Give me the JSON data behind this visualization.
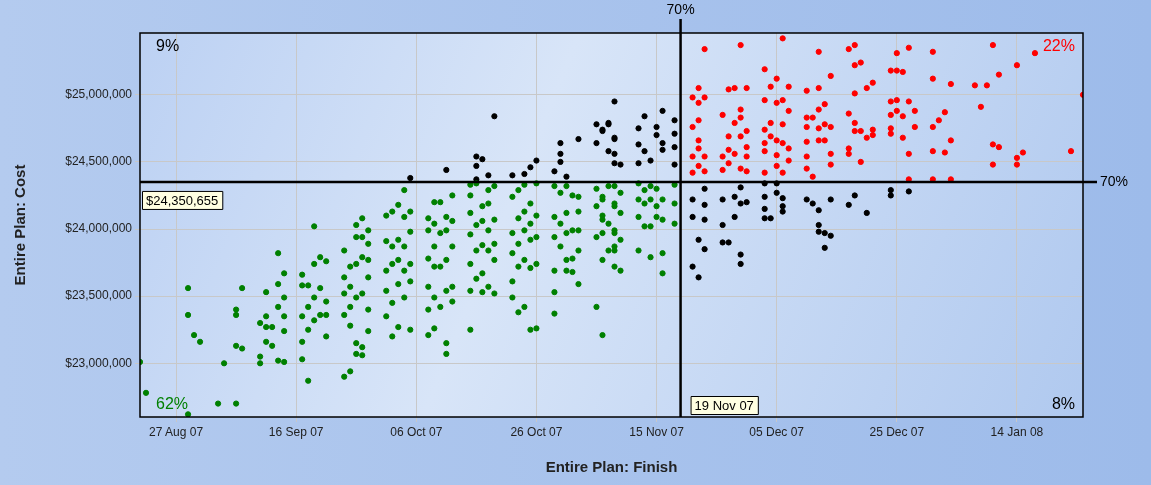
{
  "chart_data": {
    "type": "scatter",
    "xlabel": "Entire Plan: Finish",
    "ylabel": "Entire Plan: Cost",
    "xlim": [
      "2007-08-21",
      "2008-01-25"
    ],
    "xticks": [
      {
        "value": "2007-08-27",
        "label": "27 Aug 07"
      },
      {
        "value": "2007-09-16",
        "label": "16 Sep 07"
      },
      {
        "value": "2007-10-06",
        "label": "06 Oct 07"
      },
      {
        "value": "2007-10-26",
        "label": "26 Oct 07"
      },
      {
        "value": "2007-11-15",
        "label": "15 Nov 07"
      },
      {
        "value": "2007-12-05",
        "label": "05 Dec 07"
      },
      {
        "value": "2007-12-25",
        "label": "25 Dec 07"
      },
      {
        "value": "2008-01-14",
        "label": "14 Jan 08"
      }
    ],
    "ylim": [
      22600000,
      25460000
    ],
    "yticks": [
      {
        "value": 23000000,
        "label": "$23,000,000"
      },
      {
        "value": 23500000,
        "label": "$23,500,000"
      },
      {
        "value": 24000000,
        "label": "$24,000,000"
      },
      {
        "value": 24500000,
        "label": "$24,500,000"
      },
      {
        "value": 25000000,
        "label": "$25,000,000"
      }
    ],
    "grid": true,
    "marker": "circle",
    "ref_lines": [
      {
        "axis": "x",
        "value": "2007-11-19",
        "label": "19 Nov 07",
        "color": "#000000"
      },
      {
        "axis": "y",
        "value": 24350655,
        "label": "$24,350,655",
        "color": "#000000"
      }
    ],
    "annotations": [
      "9%",
      "22%",
      "62%",
      "8%",
      "70%",
      "70%"
    ],
    "series": [
      {
        "color": "#008000",
        "x": [
          "2007-08-21",
          "2007-08-22",
          "2007-08-29",
          "2007-08-29",
          "2007-08-29",
          "2007-08-30",
          "2007-08-31",
          "2007-09-03",
          "2007-09-04",
          "2007-09-06",
          "2007-09-06",
          "2007-09-06",
          "2007-09-06",
          "2007-09-07",
          "2007-09-07",
          "2007-09-10",
          "2007-09-10",
          "2007-09-10",
          "2007-09-11",
          "2007-09-11",
          "2007-09-11",
          "2007-09-11",
          "2007-09-12",
          "2007-09-12",
          "2007-09-13",
          "2007-09-13",
          "2007-09-13",
          "2007-09-13",
          "2007-09-14",
          "2007-09-14",
          "2007-09-14",
          "2007-09-14",
          "2007-09-14",
          "2007-09-17",
          "2007-09-17",
          "2007-09-17",
          "2007-09-17",
          "2007-09-17",
          "2007-09-18",
          "2007-09-18",
          "2007-09-18",
          "2007-09-18",
          "2007-09-19",
          "2007-09-19",
          "2007-09-19",
          "2007-09-19",
          "2007-09-20",
          "2007-09-20",
          "2007-09-20",
          "2007-09-21",
          "2007-09-21",
          "2007-09-21",
          "2007-09-21",
          "2007-09-24",
          "2007-09-24",
          "2007-09-24",
          "2007-09-24",
          "2007-09-24",
          "2007-09-25",
          "2007-09-25",
          "2007-09-25",
          "2007-09-25",
          "2007-09-25",
          "2007-09-26",
          "2007-09-26",
          "2007-09-26",
          "2007-09-26",
          "2007-09-26",
          "2007-09-26",
          "2007-09-27",
          "2007-09-27",
          "2007-09-27",
          "2007-09-27",
          "2007-09-27",
          "2007-09-27",
          "2007-09-28",
          "2007-09-28",
          "2007-09-28",
          "2007-09-28",
          "2007-09-28",
          "2007-09-28",
          "2007-10-01",
          "2007-10-01",
          "2007-10-01",
          "2007-10-01",
          "2007-10-01",
          "2007-10-02",
          "2007-10-02",
          "2007-10-02",
          "2007-10-02",
          "2007-10-02",
          "2007-10-03",
          "2007-10-03",
          "2007-10-03",
          "2007-10-03",
          "2007-10-03",
          "2007-10-04",
          "2007-10-04",
          "2007-10-04",
          "2007-10-04",
          "2007-10-04",
          "2007-10-05",
          "2007-10-05",
          "2007-10-05",
          "2007-10-05",
          "2007-10-05",
          "2007-10-08",
          "2007-10-08",
          "2007-10-08",
          "2007-10-08",
          "2007-10-08",
          "2007-10-08",
          "2007-10-09",
          "2007-10-09",
          "2007-10-09",
          "2007-10-09",
          "2007-10-09",
          "2007-10-09",
          "2007-10-10",
          "2007-10-10",
          "2007-10-10",
          "2007-10-10",
          "2007-10-11",
          "2007-10-11",
          "2007-10-11",
          "2007-10-11",
          "2007-10-11",
          "2007-10-11",
          "2007-10-12",
          "2007-10-12",
          "2007-10-12",
          "2007-10-12",
          "2007-10-12",
          "2007-10-15",
          "2007-10-15",
          "2007-10-15",
          "2007-10-15",
          "2007-10-15",
          "2007-10-15",
          "2007-10-15",
          "2007-10-16",
          "2007-10-16",
          "2007-10-16",
          "2007-10-16",
          "2007-10-17",
          "2007-10-17",
          "2007-10-17",
          "2007-10-17",
          "2007-10-17",
          "2007-10-18",
          "2007-10-18",
          "2007-10-18",
          "2007-10-18",
          "2007-10-18",
          "2007-10-19",
          "2007-10-19",
          "2007-10-19",
          "2007-10-19",
          "2007-10-19",
          "2007-10-22",
          "2007-10-22",
          "2007-10-22",
          "2007-10-22",
          "2007-10-22",
          "2007-10-23",
          "2007-10-23",
          "2007-10-23",
          "2007-10-23",
          "2007-10-23",
          "2007-10-24",
          "2007-10-24",
          "2007-10-24",
          "2007-10-24",
          "2007-10-24",
          "2007-10-25",
          "2007-10-25",
          "2007-10-25",
          "2007-10-25",
          "2007-10-25",
          "2007-10-26",
          "2007-10-26",
          "2007-10-26",
          "2007-10-26",
          "2007-10-26",
          "2007-10-29",
          "2007-10-29",
          "2007-10-29",
          "2007-10-29",
          "2007-10-29",
          "2007-10-29",
          "2007-10-30",
          "2007-10-30",
          "2007-10-30",
          "2007-10-31",
          "2007-10-31",
          "2007-10-31",
          "2007-10-31",
          "2007-10-31",
          "2007-11-01",
          "2007-11-01",
          "2007-11-01",
          "2007-11-01",
          "2007-11-02",
          "2007-11-02",
          "2007-11-02",
          "2007-11-02",
          "2007-11-02",
          "2007-11-05",
          "2007-11-05",
          "2007-11-05",
          "2007-11-05",
          "2007-11-06",
          "2007-11-06",
          "2007-11-06",
          "2007-11-06",
          "2007-11-06",
          "2007-11-06",
          "2007-11-06",
          "2007-11-07",
          "2007-11-07",
          "2007-11-07",
          "2007-11-08",
          "2007-11-08",
          "2007-11-08",
          "2007-11-08",
          "2007-11-08",
          "2007-11-08",
          "2007-11-08",
          "2007-11-08",
          "2007-11-09",
          "2007-11-09",
          "2007-11-09",
          "2007-11-09",
          "2007-11-12",
          "2007-11-12",
          "2007-11-12",
          "2007-11-12",
          "2007-11-13",
          "2007-11-13",
          "2007-11-13",
          "2007-11-14",
          "2007-11-14",
          "2007-11-14",
          "2007-11-14",
          "2007-11-15",
          "2007-11-15",
          "2007-11-15",
          "2007-11-16",
          "2007-11-16",
          "2007-11-16",
          "2007-11-16",
          "2007-11-18",
          "2007-11-18",
          "2007-11-18"
        ],
        "values": [
          23010000,
          22780000,
          23560000,
          23360000,
          22620000,
          23210000,
          23160000,
          22700000,
          23000000,
          23400000,
          23360000,
          23130000,
          22700000,
          23560000,
          23110000,
          23300000,
          23050000,
          23000000,
          23530000,
          23350000,
          23270000,
          23160000,
          23270000,
          23130000,
          23820000,
          23590000,
          23420000,
          23020000,
          23670000,
          23490000,
          23350000,
          23240000,
          23010000,
          23660000,
          23580000,
          23350000,
          23160000,
          23030000,
          23580000,
          23420000,
          23250000,
          22870000,
          24020000,
          23740000,
          23490000,
          23320000,
          23790000,
          23560000,
          23360000,
          23760000,
          23460000,
          23360000,
          23200000,
          23840000,
          23640000,
          23520000,
          23360000,
          22900000,
          23720000,
          23570000,
          23420000,
          23280000,
          22940000,
          24030000,
          23940000,
          23740000,
          23490000,
          23150000,
          23070000,
          24080000,
          23940000,
          23790000,
          23520000,
          23120000,
          23060000,
          23990000,
          23890000,
          23770000,
          23640000,
          23400000,
          23240000,
          24100000,
          23910000,
          23690000,
          23540000,
          23350000,
          24130000,
          23870000,
          23740000,
          23450000,
          23200000,
          24180000,
          23920000,
          23770000,
          23590000,
          23270000,
          24290000,
          24090000,
          23870000,
          23690000,
          23490000,
          24130000,
          23980000,
          23740000,
          23610000,
          23250000,
          24080000,
          23990000,
          23780000,
          23570000,
          23400000,
          23210000,
          24200000,
          24040000,
          23870000,
          23720000,
          23490000,
          23260000,
          24200000,
          23970000,
          23720000,
          23420000,
          24090000,
          23990000,
          23770000,
          23540000,
          23150000,
          23070000,
          24250000,
          24060000,
          23870000,
          23570000,
          23460000,
          24330000,
          24250000,
          24120000,
          23960000,
          23740000,
          23540000,
          23250000,
          24340000,
          24030000,
          23840000,
          23630000,
          24170000,
          24060000,
          23880000,
          23670000,
          23530000,
          24290000,
          24190000,
          23990000,
          23840000,
          23570000,
          24320000,
          24070000,
          23890000,
          23770000,
          23520000,
          24240000,
          23970000,
          23820000,
          23610000,
          23490000,
          24290000,
          24080000,
          23890000,
          23720000,
          23380000,
          24330000,
          24130000,
          23990000,
          23770000,
          23420000,
          24190000,
          24040000,
          23920000,
          23710000,
          23250000,
          24340000,
          24100000,
          23940000,
          23740000,
          23260000,
          24320000,
          24090000,
          23940000,
          23690000,
          23530000,
          23370000,
          24270000,
          24040000,
          23870000,
          24320000,
          24120000,
          23970000,
          23770000,
          23690000,
          24250000,
          23990000,
          23780000,
          23680000,
          24240000,
          24130000,
          23990000,
          23840000,
          23590000,
          24300000,
          24170000,
          23940000,
          23420000,
          24240000,
          24100000,
          23970000,
          23770000,
          23210000,
          24220000,
          24070000,
          24320000,
          24040000,
          23840000,
          24190000,
          23990000,
          23870000,
          24320000,
          24170000,
          23970000,
          23840000,
          23720000,
          24270000,
          24120000,
          23920000,
          23690000,
          24340000,
          24220000,
          24090000,
          23840000,
          24290000,
          24190000,
          24020000,
          24320000,
          24220000,
          24020000,
          23790000,
          24300000,
          24170000,
          24090000,
          24220000,
          24070000,
          23820000,
          23670000,
          24330000,
          24190000,
          24040000
        ]
      },
      {
        "color": "#000000",
        "x": [
          "2007-10-05",
          "2007-10-11",
          "2007-10-16",
          "2007-10-16",
          "2007-10-16",
          "2007-10-17",
          "2007-10-18",
          "2007-10-19",
          "2007-10-22",
          "2007-10-24",
          "2007-10-25",
          "2007-10-26",
          "2007-10-29",
          "2007-10-30",
          "2007-10-30",
          "2007-10-30",
          "2007-10-31",
          "2007-11-02",
          "2007-11-05",
          "2007-11-05",
          "2007-11-06",
          "2007-11-06",
          "2007-11-07",
          "2007-11-07",
          "2007-11-07",
          "2007-11-08",
          "2007-11-08",
          "2007-11-08",
          "2007-11-08",
          "2007-11-08",
          "2007-11-09",
          "2007-11-12",
          "2007-11-12",
          "2007-11-12",
          "2007-11-13",
          "2007-11-13",
          "2007-11-14",
          "2007-11-15",
          "2007-11-15",
          "2007-11-16",
          "2007-11-16",
          "2007-11-16",
          "2007-11-18",
          "2007-11-18",
          "2007-11-18",
          "2007-11-18",
          "2007-11-21",
          "2007-11-21",
          "2007-11-21",
          "2007-11-22",
          "2007-11-22",
          "2007-11-23",
          "2007-11-23",
          "2007-11-23",
          "2007-11-23",
          "2007-11-26",
          "2007-11-26",
          "2007-11-26",
          "2007-11-27",
          "2007-11-28",
          "2007-11-28",
          "2007-11-29",
          "2007-11-29",
          "2007-11-29",
          "2007-11-29",
          "2007-11-30",
          "2007-12-03",
          "2007-12-03",
          "2007-12-03",
          "2007-12-03",
          "2007-12-04",
          "2007-12-05",
          "2007-12-05",
          "2007-12-06",
          "2007-12-06",
          "2007-12-06",
          "2007-12-10",
          "2007-12-11",
          "2007-12-12",
          "2007-12-12",
          "2007-12-12",
          "2007-12-13",
          "2007-12-13",
          "2007-12-14",
          "2007-12-14",
          "2007-12-17",
          "2007-12-18",
          "2007-12-20",
          "2007-12-24",
          "2007-12-24",
          "2007-12-27"
        ],
        "values": [
          24380000,
          24440000,
          24540000,
          24470000,
          24370000,
          24520000,
          24400000,
          24840000,
          24400000,
          24410000,
          24460000,
          24510000,
          24430000,
          24640000,
          24560000,
          24500000,
          24390000,
          24670000,
          24780000,
          24640000,
          24730000,
          24740000,
          24780000,
          24580000,
          24790000,
          24950000,
          24670000,
          24680000,
          24560000,
          24490000,
          24480000,
          24750000,
          24630000,
          24490000,
          24840000,
          24580000,
          24510000,
          24760000,
          24700000,
          24880000,
          24640000,
          24590000,
          24810000,
          24710000,
          24610000,
          24480000,
          24220000,
          24090000,
          23720000,
          23920000,
          23640000,
          24300000,
          24180000,
          24070000,
          23850000,
          24220000,
          24030000,
          23900000,
          23900000,
          24240000,
          24090000,
          24310000,
          24190000,
          23810000,
          23740000,
          24200000,
          24340000,
          24240000,
          24150000,
          24080000,
          24080000,
          24340000,
          24270000,
          24230000,
          24170000,
          24130000,
          24220000,
          24190000,
          24140000,
          24030000,
          23980000,
          23970000,
          23860000,
          24220000,
          23950000,
          24180000,
          24250000,
          24120000,
          24290000,
          24250000,
          24280000
        ]
      },
      {
        "color": "#ff0000",
        "x": [
          "2007-11-21",
          "2007-11-21",
          "2007-11-21",
          "2007-11-21",
          "2007-11-22",
          "2007-11-22",
          "2007-11-22",
          "2007-11-22",
          "2007-11-22",
          "2007-11-22",
          "2007-11-23",
          "2007-11-23",
          "2007-11-23",
          "2007-11-23",
          "2007-11-26",
          "2007-11-26",
          "2007-11-26",
          "2007-11-27",
          "2007-11-27",
          "2007-11-27",
          "2007-11-27",
          "2007-11-28",
          "2007-11-28",
          "2007-11-28",
          "2007-11-29",
          "2007-11-29",
          "2007-11-29",
          "2007-11-29",
          "2007-11-29",
          "2007-11-30",
          "2007-11-30",
          "2007-11-30",
          "2007-11-30",
          "2007-11-30",
          "2007-12-03",
          "2007-12-03",
          "2007-12-03",
          "2007-12-03",
          "2007-12-03",
          "2007-12-03",
          "2007-12-04",
          "2007-12-04",
          "2007-12-04",
          "2007-12-05",
          "2007-12-05",
          "2007-12-05",
          "2007-12-05",
          "2007-12-05",
          "2007-12-06",
          "2007-12-06",
          "2007-12-06",
          "2007-12-06",
          "2007-12-06",
          "2007-12-07",
          "2007-12-07",
          "2007-12-07",
          "2007-12-07",
          "2007-12-10",
          "2007-12-10",
          "2007-12-10",
          "2007-12-10",
          "2007-12-10",
          "2007-12-10",
          "2007-12-11",
          "2007-12-11",
          "2007-12-12",
          "2007-12-12",
          "2007-12-12",
          "2007-12-12",
          "2007-12-12",
          "2007-12-13",
          "2007-12-13",
          "2007-12-13",
          "2007-12-14",
          "2007-12-14",
          "2007-12-14",
          "2007-12-14",
          "2007-12-17",
          "2007-12-17",
          "2007-12-17",
          "2007-12-17",
          "2007-12-18",
          "2007-12-18",
          "2007-12-18",
          "2007-12-18",
          "2007-12-18",
          "2007-12-19",
          "2007-12-19",
          "2007-12-19",
          "2007-12-20",
          "2007-12-20",
          "2007-12-21",
          "2007-12-21",
          "2007-12-21",
          "2007-12-24",
          "2007-12-24",
          "2007-12-24",
          "2007-12-24",
          "2007-12-24",
          "2007-12-25",
          "2007-12-25",
          "2007-12-25",
          "2007-12-25",
          "2007-12-26",
          "2007-12-26",
          "2007-12-26",
          "2007-12-27",
          "2007-12-27",
          "2007-12-27",
          "2007-12-27",
          "2007-12-28",
          "2007-12-28",
          "2007-12-31",
          "2007-12-31",
          "2007-12-31",
          "2007-12-31",
          "2007-12-31",
          "2008-01-01",
          "2008-01-02",
          "2008-01-02",
          "2008-01-03",
          "2008-01-03",
          "2008-01-03",
          "2008-01-07",
          "2008-01-08",
          "2008-01-09",
          "2008-01-10",
          "2008-01-10",
          "2008-01-10",
          "2008-01-11",
          "2008-01-11",
          "2008-01-14",
          "2008-01-14",
          "2008-01-14",
          "2008-01-15",
          "2008-01-17",
          "2008-01-23",
          "2008-01-25"
        ],
        "values": [
          24980000,
          24760000,
          24540000,
          24420000,
          25050000,
          24940000,
          24810000,
          24660000,
          24600000,
          24470000,
          25340000,
          24980000,
          24540000,
          24430000,
          24850000,
          24540000,
          24440000,
          25040000,
          24690000,
          24590000,
          24490000,
          25050000,
          24790000,
          24560000,
          25370000,
          24890000,
          24830000,
          24690000,
          24450000,
          25050000,
          24730000,
          24610000,
          24540000,
          24430000,
          25190000,
          24960000,
          24740000,
          24640000,
          24580000,
          24420000,
          25060000,
          24790000,
          24690000,
          25120000,
          24940000,
          24660000,
          24550000,
          24470000,
          25420000,
          24960000,
          24780000,
          24640000,
          24420000,
          25060000,
          24880000,
          24600000,
          24510000,
          25030000,
          24830000,
          24760000,
          24650000,
          24540000,
          24450000,
          24830000,
          24390000,
          25320000,
          25050000,
          24890000,
          24750000,
          24660000,
          24930000,
          24780000,
          24660000,
          25140000,
          24760000,
          24560000,
          24480000,
          25340000,
          24860000,
          24600000,
          24560000,
          25370000,
          25220000,
          25010000,
          24790000,
          24730000,
          25240000,
          24730000,
          24500000,
          25050000,
          24680000,
          25090000,
          24740000,
          24700000,
          25180000,
          24950000,
          24850000,
          24750000,
          24710000,
          25310000,
          25180000,
          24960000,
          24880000,
          25170000,
          24840000,
          24680000,
          25350000,
          24950000,
          24560000,
          24370000,
          24880000,
          24760000,
          25320000,
          25120000,
          24760000,
          24580000,
          24370000,
          24810000,
          24870000,
          24570000,
          25080000,
          24660000,
          24370000,
          25070000,
          24910000,
          25070000,
          25370000,
          24630000,
          24480000,
          25150000,
          24610000,
          25220000,
          24530000,
          24480000,
          24570000,
          25310000,
          24580000,
          25000000
        ]
      }
    ]
  }
}
